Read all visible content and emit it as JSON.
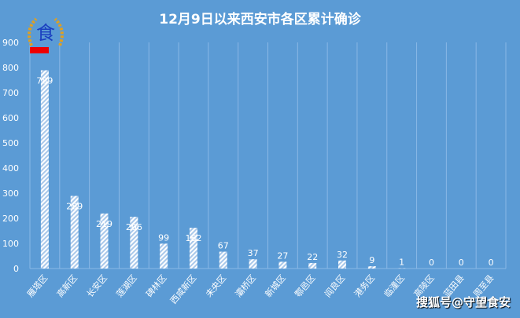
{
  "chart_data": {
    "type": "bar",
    "title": "12月9日以来西安市各区累计确诊",
    "categories": [
      "雁塔区",
      "高新区",
      "长安区",
      "莲湖区",
      "碑林区",
      "西咸新区",
      "未央区",
      "灞桥区",
      "新城区",
      "鄠邑区",
      "阎良区",
      "港务区",
      "临潼区",
      "高陵区",
      "蓝田县",
      "周至县"
    ],
    "values": [
      789,
      289,
      219,
      206,
      99,
      162,
      67,
      37,
      27,
      22,
      32,
      9,
      1,
      0,
      0,
      0
    ],
    "ylim": [
      0,
      900
    ],
    "yticks": [
      0,
      100,
      200,
      300,
      400,
      500,
      600,
      700,
      800,
      900
    ],
    "grid": "vertical",
    "bar_fill": "white diagonal hatch",
    "colors": {
      "background": "#5b9bd5",
      "bar": "#ffffff"
    }
  },
  "logo": {
    "text": "食安 守望"
  },
  "watermark": "搜狐号@守望食安"
}
